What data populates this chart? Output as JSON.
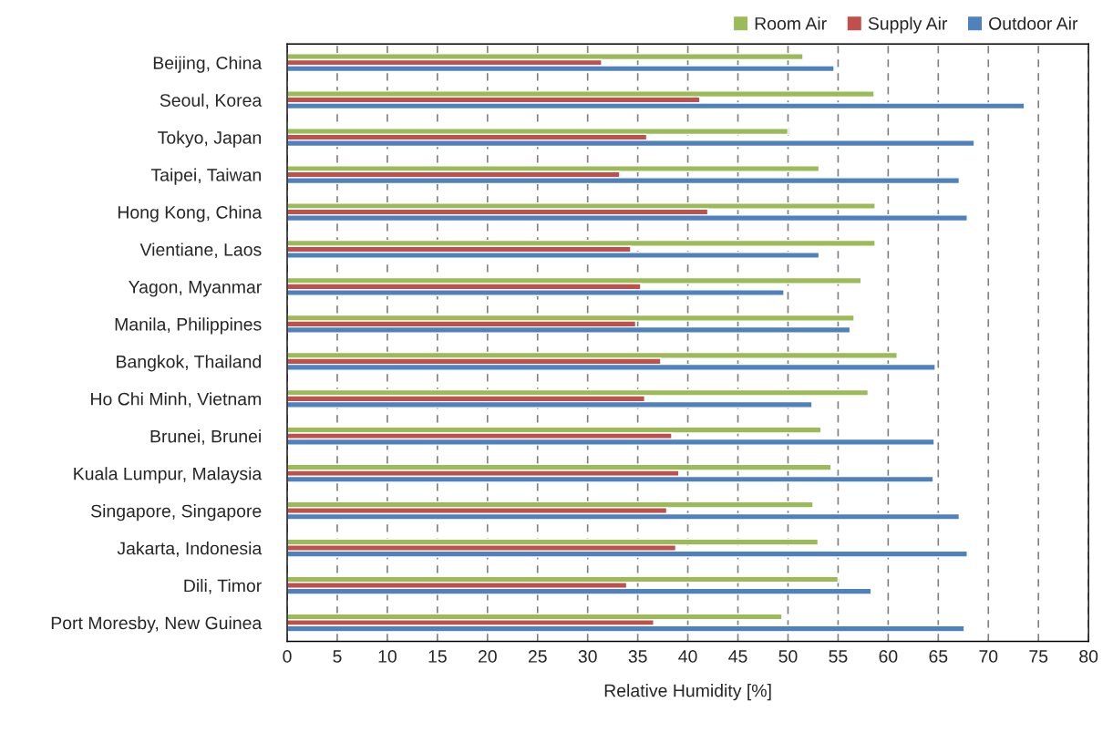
{
  "chart_data": {
    "type": "bar",
    "orientation": "horizontal",
    "xlabel": "Relative Humidity [%]",
    "categories": [
      "Beijing, China",
      "Seoul, Korea",
      "Tokyo, Japan",
      "Taipei, Taiwan",
      "Hong Kong, China",
      "Vientiane, Laos",
      "Yagon, Myanmar",
      "Manila, Philippines",
      "Bangkok, Thailand",
      "Ho Chi Minh, Vietnam",
      "Brunei, Brunei",
      "Kuala Lumpur, Malaysia",
      "Singapore, Singapore",
      "Jakarta, Indonesia",
      "Dili, Timor",
      "Port Moresby, New Guinea"
    ],
    "series": [
      {
        "name": "Room Air",
        "color": "#9bbb59",
        "values": [
          51.5,
          58.6,
          50.0,
          53.1,
          58.7,
          58.7,
          57.3,
          56.6,
          60.9,
          58.0,
          53.3,
          54.3,
          52.5,
          53.0,
          55.0,
          49.4
        ]
      },
      {
        "name": "Supply Air",
        "color": "#c0504d",
        "values": [
          31.4,
          41.2,
          35.9,
          33.2,
          42.0,
          34.3,
          35.3,
          34.8,
          37.3,
          35.7,
          38.4,
          39.1,
          37.9,
          38.8,
          33.9,
          36.6
        ]
      },
      {
        "name": "Outdoor Air",
        "color": "#4f81bd",
        "values": [
          54.6,
          73.6,
          68.6,
          67.1,
          67.9,
          53.1,
          49.6,
          56.2,
          64.7,
          52.4,
          64.6,
          64.5,
          67.1,
          67.9,
          58.3,
          67.6
        ]
      }
    ],
    "xlim": [
      0,
      80
    ],
    "xticks": [
      0,
      5,
      10,
      15,
      20,
      25,
      30,
      35,
      40,
      45,
      50,
      55,
      60,
      65,
      70,
      75,
      80
    ],
    "grid": "x",
    "legend": "top right"
  }
}
